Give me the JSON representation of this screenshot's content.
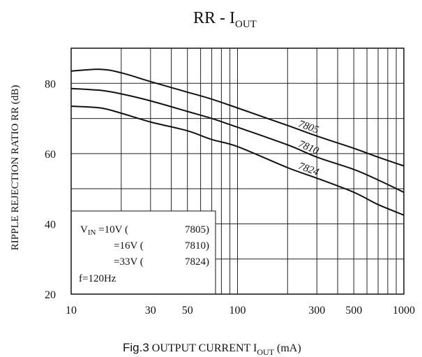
{
  "chart_data": {
    "type": "line",
    "title_main": "RR  -  I",
    "title_sub": "OUT",
    "xlabel_prefix": "Fig.3",
    "xlabel_main": " OUTPUT CURRENT I",
    "xlabel_sub": "OUT",
    "xlabel_unit": "  (mA)",
    "ylabel": "RIPPLE REJECTION RATIO RR (dB)",
    "xscale": "log",
    "xlim": [
      10,
      1000
    ],
    "ylim": [
      20,
      90
    ],
    "grid": true,
    "x_ticks": [
      {
        "value": 10,
        "label": "10"
      },
      {
        "value": 30,
        "label": "30"
      },
      {
        "value": 50,
        "label": "50"
      },
      {
        "value": 100,
        "label": "100"
      },
      {
        "value": 300,
        "label": "300"
      },
      {
        "value": 500,
        "label": "500"
      },
      {
        "value": 1000,
        "label": "1000"
      }
    ],
    "y_ticks": [
      {
        "value": 20,
        "label": "20"
      },
      {
        "value": 40,
        "label": "40"
      },
      {
        "value": 60,
        "label": "60"
      },
      {
        "value": 80,
        "label": "80"
      }
    ],
    "series": [
      {
        "name": "7805",
        "x": [
          10,
          15,
          20,
          30,
          50,
          70,
          100,
          200,
          300,
          500,
          700,
          1000
        ],
        "y": [
          83.5,
          84,
          83,
          80.5,
          77.5,
          75.5,
          73,
          68,
          65,
          61.5,
          59,
          56.5
        ]
      },
      {
        "name": "7810",
        "x": [
          10,
          15,
          20,
          30,
          50,
          70,
          100,
          200,
          300,
          500,
          700,
          1000
        ],
        "y": [
          78.5,
          78,
          77,
          75,
          72,
          70,
          67.5,
          62.5,
          59,
          55.5,
          52.5,
          49
        ]
      },
      {
        "name": "7824",
        "x": [
          10,
          15,
          20,
          30,
          50,
          70,
          100,
          200,
          300,
          500,
          700,
          1000
        ],
        "y": [
          73.5,
          73,
          71.5,
          69,
          66.5,
          64,
          62,
          56,
          53,
          49,
          45.5,
          42.5
        ]
      }
    ],
    "legend": {
      "lines": [
        {
          "v": "V",
          "v_sub": "IN",
          "text": " =10V (",
          "model": "7805)"
        },
        {
          "v": "",
          "v_sub": "",
          "text": "=16V (",
          "model": "7810)"
        },
        {
          "v": "",
          "v_sub": "",
          "text": "=33V (",
          "model": "7824)"
        }
      ],
      "freq": "f=120Hz",
      "placement": "bottom-left"
    }
  }
}
